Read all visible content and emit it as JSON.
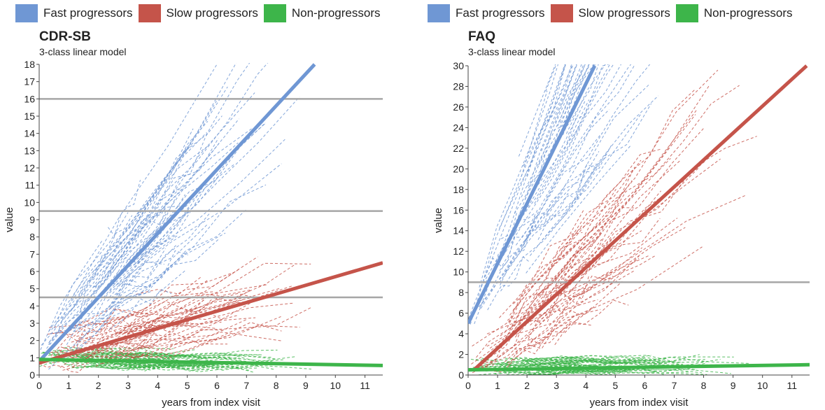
{
  "legend": [
    {
      "label": "Fast progressors",
      "color": "#6f97d4"
    },
    {
      "label": "Slow progressors",
      "color": "#c5544a"
    },
    {
      "label": "Non-progressors",
      "color": "#3db54a"
    }
  ],
  "chart_data": [
    {
      "type": "line",
      "title": "CDR-SB",
      "subtitle": "3-class linear model",
      "xlabel": "years from index visit",
      "ylabel": "value",
      "xlim": [
        0,
        11.6
      ],
      "ylim": [
        0,
        18
      ],
      "xticks": [
        0,
        1,
        2,
        3,
        4,
        5,
        6,
        7,
        8,
        9,
        10,
        11
      ],
      "yticks": [
        0,
        1,
        2,
        3,
        4,
        5,
        6,
        7,
        8,
        9,
        10,
        11,
        12,
        13,
        14,
        15,
        16,
        17,
        18
      ],
      "reference_lines_y": [
        4.5,
        9.5,
        16
      ],
      "grid": false,
      "series": [
        {
          "name": "Fast progressors",
          "color": "#6f97d4",
          "x": [
            0,
            9.3
          ],
          "y": [
            0.8,
            18
          ]
        },
        {
          "name": "Slow progressors",
          "color": "#c5544a",
          "x": [
            0,
            11.6
          ],
          "y": [
            0.7,
            6.5
          ]
        },
        {
          "name": "Non-progressors",
          "color": "#3db54a",
          "x": [
            0,
            11.6
          ],
          "y": [
            0.9,
            0.55
          ]
        }
      ]
    },
    {
      "type": "line",
      "title": "FAQ",
      "subtitle": "3-class linear model",
      "xlabel": "years from index visit",
      "ylabel": "value",
      "xlim": [
        0,
        11.6
      ],
      "ylim": [
        0,
        30
      ],
      "xticks": [
        0,
        1,
        2,
        3,
        4,
        5,
        6,
        7,
        8,
        9,
        10,
        11
      ],
      "yticks": [
        0,
        2,
        4,
        6,
        8,
        10,
        12,
        14,
        16,
        18,
        20,
        22,
        24,
        26,
        28,
        30
      ],
      "reference_lines_y": [
        9
      ],
      "grid": false,
      "series": [
        {
          "name": "Fast progressors",
          "color": "#6f97d4",
          "x": [
            0,
            4.3
          ],
          "y": [
            5,
            30
          ]
        },
        {
          "name": "Slow progressors",
          "color": "#c5544a",
          "x": [
            0.2,
            11.5
          ],
          "y": [
            0.5,
            30
          ]
        },
        {
          "name": "Non-progressors",
          "color": "#3db54a",
          "x": [
            0,
            11.6
          ],
          "y": [
            0.5,
            1.0
          ]
        }
      ]
    }
  ]
}
